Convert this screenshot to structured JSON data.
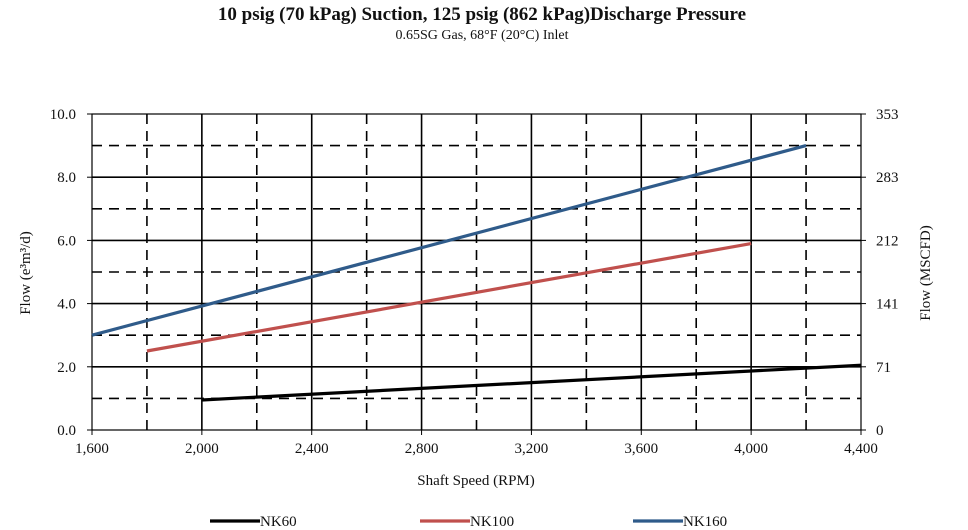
{
  "chart_data": {
    "type": "line",
    "title": "10 psig (70 kPag) Suction, 125 psig (862 kPag)Discharge Pressure",
    "subtitle": "0.65SG Gas, 68°F (20°C) Inlet",
    "xlabel": "Shaft Speed (RPM)",
    "ylabel": "Flow (e³m³/d)",
    "y2label": "Flow (MSCFD)",
    "xlim": [
      1600,
      4400
    ],
    "ylim": [
      0,
      10
    ],
    "x_ticks": [
      "1,600",
      "2,000",
      "2,400",
      "2,800",
      "3,200",
      "3,600",
      "4,000",
      "4,400"
    ],
    "y_ticks": [
      "0.0",
      "2.0",
      "4.0",
      "6.0",
      "8.0",
      "10.0"
    ],
    "y2_ticks": [
      "0",
      "71",
      "141",
      "212",
      "283",
      "353"
    ],
    "grid": true,
    "legend_position": "bottom",
    "series": [
      {
        "name": "NK60",
        "color": "#000000",
        "x": [
          2000,
          4400
        ],
        "y": [
          0.95,
          2.05
        ]
      },
      {
        "name": "NK100",
        "color": "#c0504d",
        "x": [
          1800,
          4000
        ],
        "y": [
          2.5,
          5.9
        ]
      },
      {
        "name": "NK160",
        "color": "#2f5b8a",
        "x": [
          1600,
          4200
        ],
        "y": [
          3.0,
          9.0
        ]
      }
    ]
  }
}
